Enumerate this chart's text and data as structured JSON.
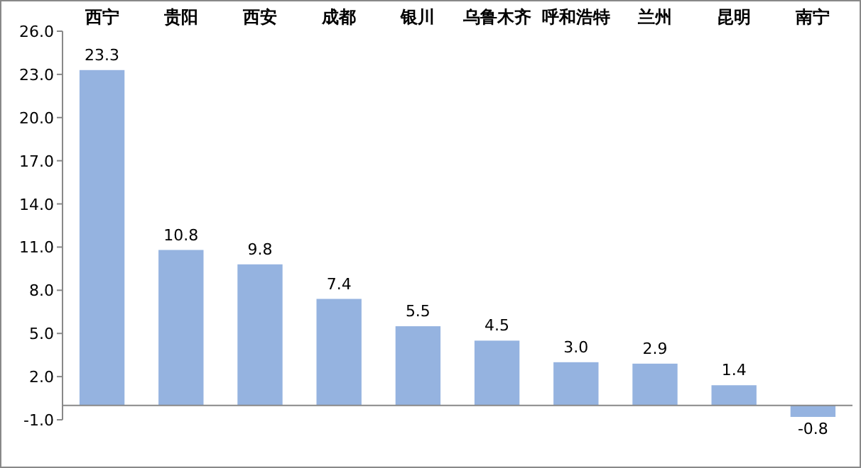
{
  "chart_data": {
    "type": "bar",
    "categories": [
      "西宁",
      "贵阳",
      "西安",
      "成都",
      "银川",
      "乌鲁木齐",
      "呼和浩特",
      "兰州",
      "昆明",
      "南宁"
    ],
    "values": [
      23.3,
      10.8,
      9.8,
      7.4,
      5.5,
      4.5,
      3.0,
      2.9,
      1.4,
      -0.8
    ],
    "value_labels": [
      "23.3",
      "10.8",
      "9.8",
      "7.4",
      "5.5",
      "4.5",
      "3.0",
      "2.9",
      "1.4",
      "-0.8"
    ],
    "color": "#95b3e0",
    "ylim": [
      -1.0,
      26.0
    ],
    "yticks": [
      {
        "value": -1,
        "label": "-1.0"
      },
      {
        "value": 2,
        "label": "2.0"
      },
      {
        "value": 5,
        "label": "5.0"
      },
      {
        "value": 8,
        "label": "8.0"
      },
      {
        "value": 11,
        "label": "11.0"
      },
      {
        "value": 14,
        "label": "14.0"
      },
      {
        "value": 17,
        "label": "17.0"
      },
      {
        "value": 20,
        "label": "20.0"
      },
      {
        "value": 23,
        "label": "23.0"
      },
      {
        "value": 26,
        "label": "26.0"
      }
    ],
    "grid": false
  }
}
